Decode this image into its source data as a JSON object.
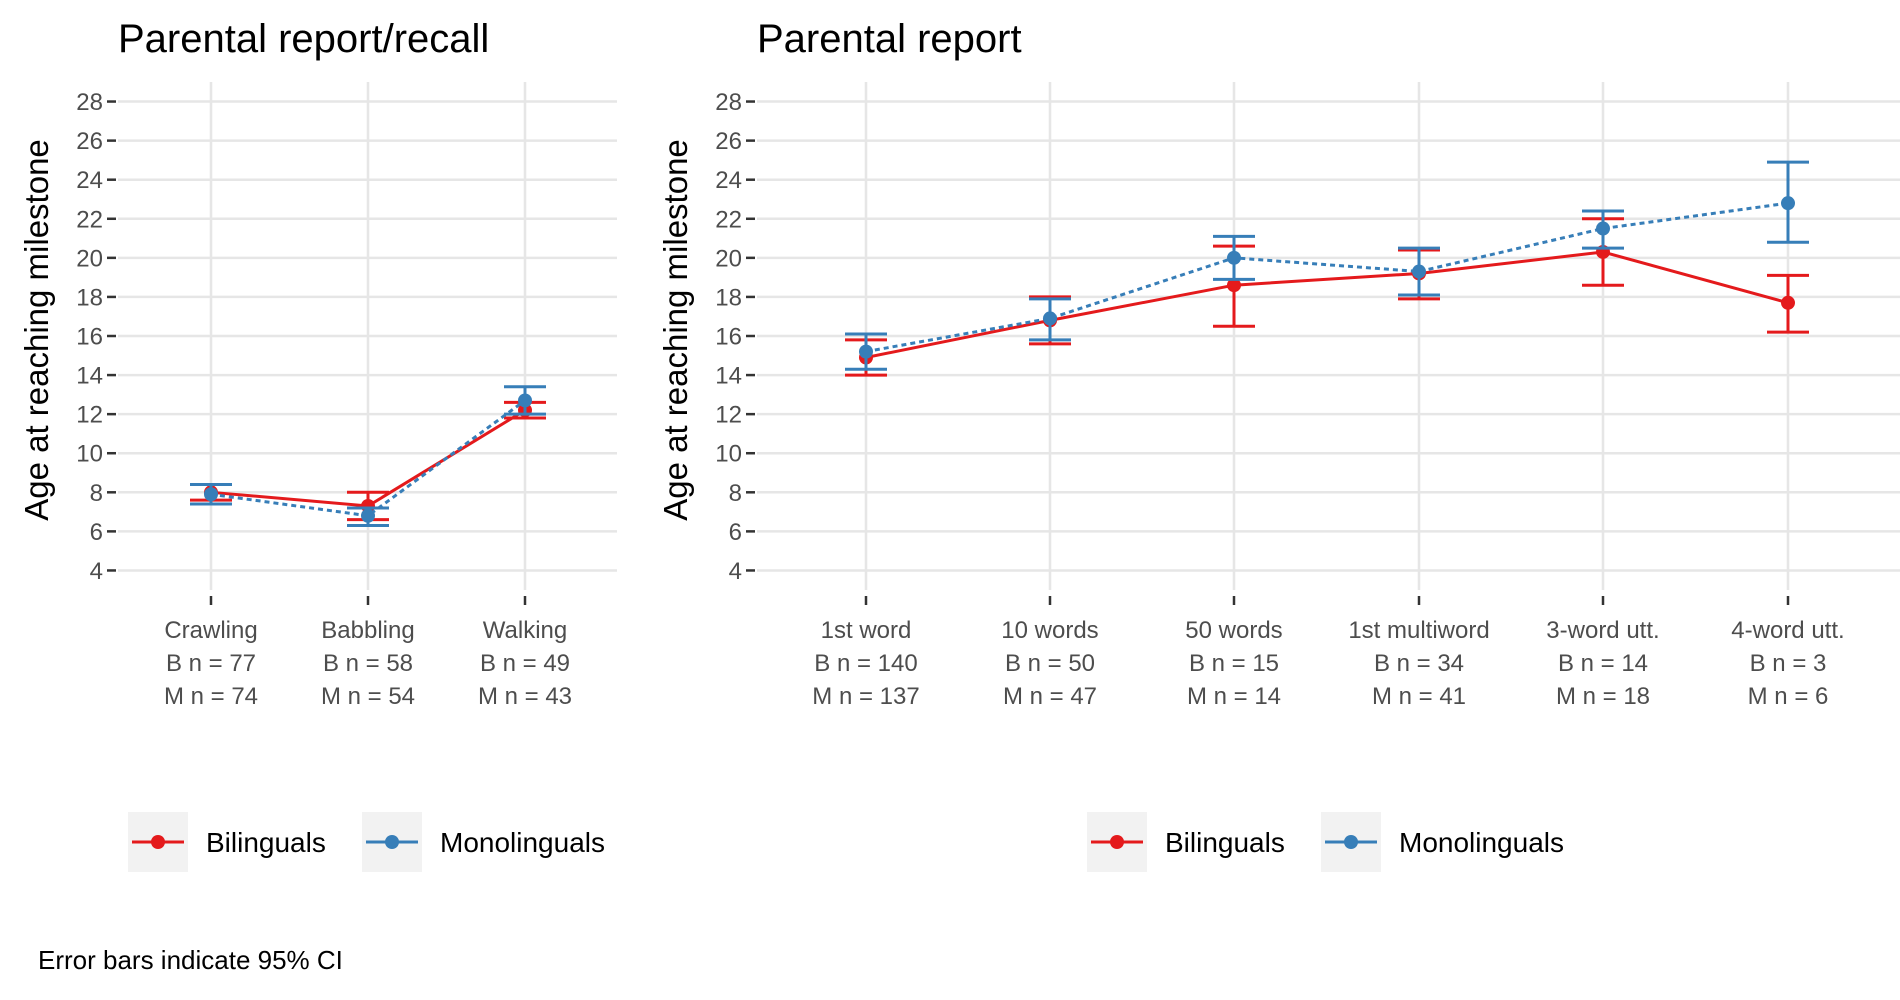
{
  "colors": {
    "bilinguals": "#e41a1c",
    "monolinguals": "#377eb8"
  },
  "caption": "Error bars indicate 95% CI",
  "y_axis_label": "Age at reaching milestone",
  "chart_data": [
    {
      "type": "line",
      "title": "Parental report/recall",
      "ylabel": "Age at reaching milestone",
      "ylim": [
        3,
        29
      ],
      "yticks": [
        4,
        6,
        8,
        10,
        12,
        14,
        16,
        18,
        20,
        22,
        24,
        26,
        28
      ],
      "grid": true,
      "legend": "bottom",
      "categories": [
        {
          "name": "Crawling",
          "n_b": "B n = 77",
          "n_m": "M n = 74"
        },
        {
          "name": "Babbling",
          "n_b": "B n = 58",
          "n_m": "M n = 54"
        },
        {
          "name": "Walking",
          "n_b": "B n = 49",
          "n_m": "M n = 43"
        }
      ],
      "series": [
        {
          "name": "Bilinguals",
          "line": "solid",
          "color": "#e41a1c",
          "values": [
            8.0,
            7.3,
            12.2
          ],
          "ci_low": [
            7.6,
            6.6,
            11.8
          ],
          "ci_high": [
            8.4,
            8.0,
            12.6
          ]
        },
        {
          "name": "Monolinguals",
          "line": "dotted",
          "color": "#377eb8",
          "values": [
            7.9,
            6.8,
            12.7
          ],
          "ci_low": [
            7.4,
            6.3,
            12.0
          ],
          "ci_high": [
            8.4,
            7.2,
            13.4
          ]
        }
      ]
    },
    {
      "type": "line",
      "title": "Parental report",
      "ylabel": "Age at reaching milestone",
      "ylim": [
        3,
        29
      ],
      "yticks": [
        4,
        6,
        8,
        10,
        12,
        14,
        16,
        18,
        20,
        22,
        24,
        26,
        28
      ],
      "grid": true,
      "legend": "bottom",
      "categories": [
        {
          "name": "1st word",
          "n_b": "B n = 140",
          "n_m": "M n = 137"
        },
        {
          "name": "10 words",
          "n_b": "B n = 50",
          "n_m": "M n = 47"
        },
        {
          "name": "50 words",
          "n_b": "B n = 15",
          "n_m": "M n = 14"
        },
        {
          "name": "1st multiword",
          "n_b": "B n = 34",
          "n_m": "M n = 41"
        },
        {
          "name": "3-word utt.",
          "n_b": "B n = 14",
          "n_m": "M n = 18"
        },
        {
          "name": "4-word utt.",
          "n_b": "B n = 3",
          "n_m": "M n = 6"
        }
      ],
      "series": [
        {
          "name": "Bilinguals",
          "line": "solid",
          "color": "#e41a1c",
          "values": [
            14.9,
            16.8,
            18.6,
            19.2,
            20.3,
            17.7
          ],
          "ci_low": [
            14.0,
            15.6,
            16.5,
            17.9,
            18.6,
            16.2
          ],
          "ci_high": [
            15.8,
            18.0,
            20.6,
            20.4,
            22.0,
            19.1
          ]
        },
        {
          "name": "Monolinguals",
          "line": "dotted",
          "color": "#377eb8",
          "values": [
            15.2,
            16.9,
            20.0,
            19.3,
            21.5,
            22.8
          ],
          "ci_low": [
            14.3,
            15.8,
            18.9,
            18.1,
            20.5,
            20.8
          ],
          "ci_high": [
            16.1,
            17.9,
            21.1,
            20.5,
            22.4,
            24.9
          ]
        }
      ]
    }
  ]
}
